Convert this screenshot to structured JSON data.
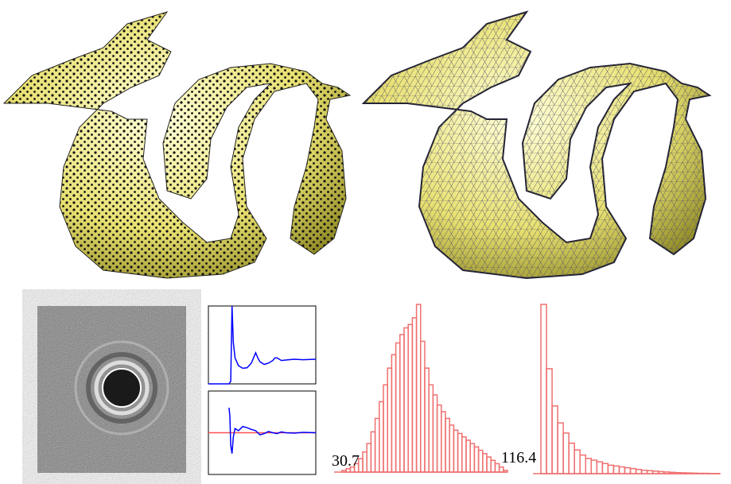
{
  "plots": [
    {
      "color": "#0000ff",
      "xlim": [
        0,
        250
      ],
      "ylim": [
        0,
        3
      ],
      "x": [
        0,
        20,
        40,
        48,
        52,
        55,
        58,
        62,
        70,
        80,
        90,
        100,
        105,
        110,
        115,
        120,
        130,
        140,
        150,
        155,
        160,
        165,
        170,
        180,
        200,
        220,
        250
      ],
      "values": [
        0,
        0,
        0,
        0,
        0.1,
        3,
        1.6,
        1.0,
        0.7,
        0.6,
        0.62,
        0.8,
        1.0,
        1.2,
        1.0,
        0.85,
        0.75,
        0.8,
        0.9,
        1.0,
        1.0,
        0.95,
        0.9,
        0.92,
        0.95,
        0.93,
        0.95
      ]
    },
    {
      "color": "#0000ff",
      "ref_color": "#ff5050",
      "ref": 0,
      "xlim": [
        0,
        250
      ],
      "ylim": [
        -1,
        1
      ],
      "x": [
        48,
        50,
        52,
        55,
        58,
        62,
        70,
        80,
        90,
        100,
        110,
        120,
        130,
        140,
        150,
        160,
        170,
        180,
        200,
        220,
        250
      ],
      "values": [
        0.6,
        0.4,
        -0.3,
        -0.5,
        -0.1,
        0.1,
        0.05,
        0.15,
        0.12,
        0.08,
        0.05,
        -0.05,
        -0.02,
        0.03,
        0.0,
        -0.02,
        0.02,
        0.0,
        -0.01,
        0.01,
        0.0
      ]
    }
  ],
  "histograms": [
    {
      "color": "#f07070",
      "min_label": 30.7,
      "max_label": 116.4,
      "counts": [
        1,
        2,
        3,
        5,
        8,
        12,
        17,
        24,
        32,
        42,
        52,
        62,
        70,
        77,
        82,
        86,
        88,
        92,
        100,
        78,
        62,
        52,
        46,
        40,
        36,
        32,
        28,
        25,
        23,
        21,
        19,
        17,
        15,
        13,
        11,
        9,
        7,
        5,
        3,
        1
      ]
    },
    {
      "color": "#f07070",
      "counts": [
        100,
        62,
        40,
        30,
        24,
        18,
        14,
        11,
        9,
        8,
        7,
        6,
        5,
        4.5,
        4,
        3.5,
        3,
        2.5,
        2,
        1.8,
        1.5,
        1.2,
        1,
        0.8,
        0.6,
        0.5,
        0.4,
        0.3,
        0.2,
        0.2,
        0.1,
        0.1
      ]
    }
  ]
}
